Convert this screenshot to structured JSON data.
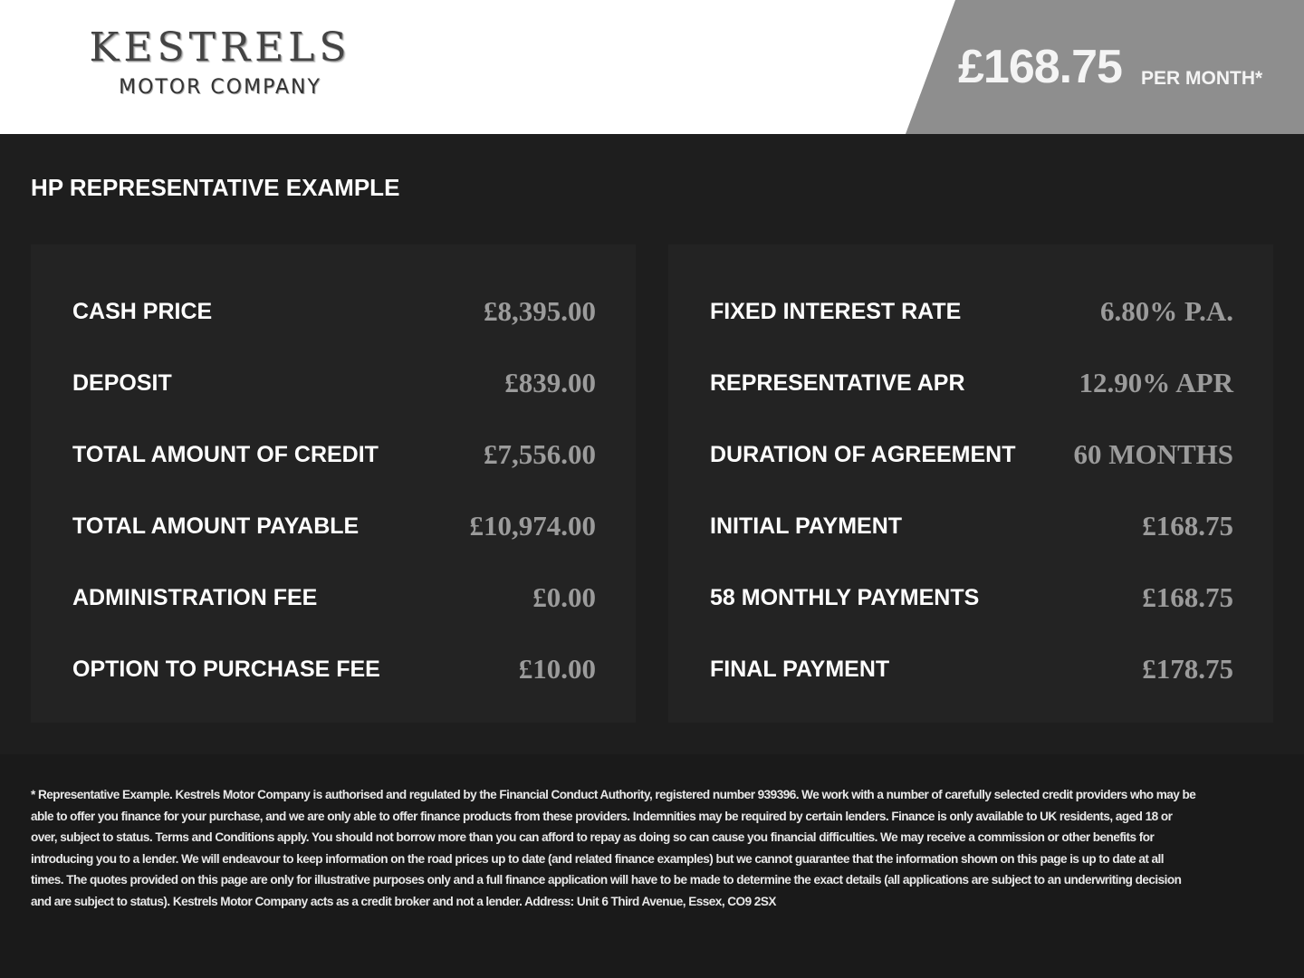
{
  "header": {
    "logo": {
      "main": "KESTRELS",
      "sub": "MOTOR COMPANY"
    },
    "monthly_price": "£168.75",
    "per_month": "PER MONTH*",
    "accent_color": "#8e8e8e"
  },
  "example": {
    "title": "HP REPRESENTATIVE EXAMPLE",
    "left": [
      {
        "label": "CASH PRICE",
        "value": "£8,395.00"
      },
      {
        "label": "DEPOSIT",
        "value": "£839.00"
      },
      {
        "label": "TOTAL AMOUNT OF CREDIT",
        "value": "£7,556.00"
      },
      {
        "label": "TOTAL AMOUNT PAYABLE",
        "value": "£10,974.00"
      },
      {
        "label": "ADMINISTRATION FEE",
        "value": "£0.00"
      },
      {
        "label": "OPTION TO PURCHASE FEE",
        "value": "£10.00"
      }
    ],
    "right": [
      {
        "label": "FIXED INTEREST RATE",
        "value": "6.80% P.A."
      },
      {
        "label": "REPRESENTATIVE APR",
        "value": "12.90% APR"
      },
      {
        "label": "DURATION OF AGREEMENT",
        "value": "60 MONTHS"
      },
      {
        "label": "INITIAL PAYMENT",
        "value": "£168.75"
      },
      {
        "label": "58 MONTHLY PAYMENTS",
        "value": "£168.75"
      },
      {
        "label": "FINAL PAYMENT",
        "value": "£178.75"
      }
    ]
  },
  "disclaimer": "* Representative Example. Kestrels Motor Company is authorised and regulated by the Financial Conduct Authority, registered number 939396. We work with a number of carefully selected credit providers who may be able to offer you finance for your purchase, and we are only able to offer finance products from these providers. Indemnities may be required by certain lenders. Finance is only available to UK residents, aged 18 or over, subject to status. Terms and Conditions apply. You should not borrow more than you can afford to repay as doing so can cause you financial difficulties. We may receive a commission or other benefits for introducing you to a lender. We will endeavour to keep information on the road prices up to date (and related finance examples) but we cannot guarantee that the information shown on this page is up to date at all times. The quotes provided on this page are only for illustrative purposes only and a full finance application will have to be made to determine the exact details (all applications are subject to an underwriting decision and are subject to status). Kestrels Motor Company acts as a credit broker and not a lender. Address: Unit 6 Third Avenue, Essex, CO9 2SX"
}
